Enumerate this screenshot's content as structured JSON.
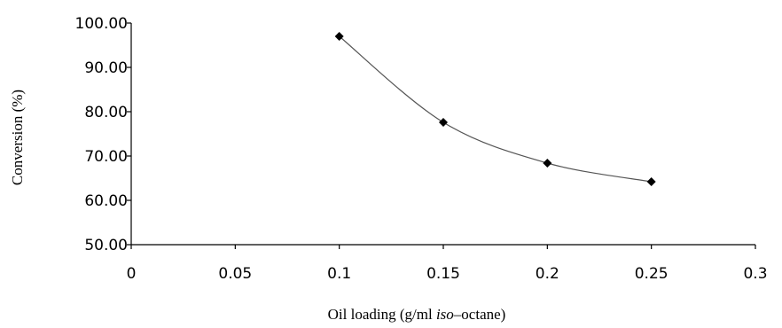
{
  "chart_data": {
    "type": "line",
    "title": "",
    "xlabel_parts": [
      {
        "text": "Oil loading (g/ml ",
        "italic": false
      },
      {
        "text": "iso",
        "italic": true
      },
      {
        "text": "–octane)",
        "italic": false
      }
    ],
    "ylabel": "Conversion (%)",
    "xlim": [
      0,
      0.3
    ],
    "ylim": [
      50,
      100
    ],
    "x_ticks": [
      0,
      0.05,
      0.1,
      0.15,
      0.2,
      0.25,
      0.3
    ],
    "x_tick_labels": [
      "0",
      "0.05",
      "0.1",
      "0.15",
      "0.2",
      "0.25",
      "0.3"
    ],
    "y_ticks": [
      50,
      60,
      70,
      80,
      90,
      100
    ],
    "y_tick_labels": [
      "50.00",
      "60.00",
      "70.00",
      "80.00",
      "90.00",
      "100.00"
    ],
    "grid": false,
    "smooth": true,
    "marker": "diamond",
    "line_color": "#555555",
    "marker_color": "#000000",
    "series": [
      {
        "x": [
          0.1,
          0.15,
          0.2,
          0.25
        ],
        "y": [
          97.0,
          77.6,
          68.4,
          64.2
        ]
      }
    ]
  }
}
